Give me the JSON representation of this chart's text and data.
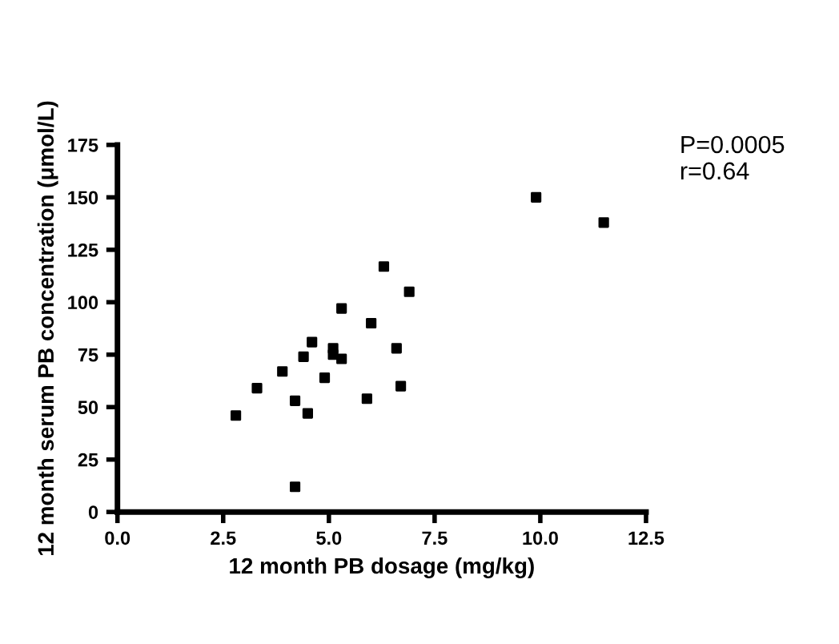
{
  "chart_data": {
    "type": "scatter",
    "xlabel": "12 month PB dosage (mg/kg)",
    "ylabel": "12 month serum PB concentration (μmol/L)",
    "annotations": [
      "P=0.0005\nr=0.64"
    ],
    "x": [
      2.8,
      3.3,
      3.9,
      4.2,
      4.2,
      4.4,
      4.5,
      4.6,
      4.9,
      5.1,
      5.1,
      5.3,
      5.3,
      5.9,
      6.0,
      6.3,
      6.6,
      6.7,
      6.9,
      9.9,
      11.5
    ],
    "series": [
      {
        "color": "#000000",
        "values": [
          46,
          59,
          67,
          53,
          12,
          74,
          47,
          81,
          64,
          78,
          75,
          73,
          97,
          54,
          90,
          117,
          78,
          60,
          105,
          150,
          138
        ]
      }
    ],
    "xlim": [
      0,
      12.5
    ],
    "ylim": [
      0,
      175
    ],
    "xticks": [
      {
        "value": 0,
        "label": "0.0"
      },
      2.5,
      {
        "value": 5,
        "label": "5.0"
      },
      7.5,
      {
        "value": 10,
        "label": "10.0"
      },
      12.5
    ],
    "yticks": [
      0,
      25,
      50,
      75,
      100,
      125,
      150,
      175
    ],
    "marker": "square",
    "grid": false,
    "legend": false
  }
}
